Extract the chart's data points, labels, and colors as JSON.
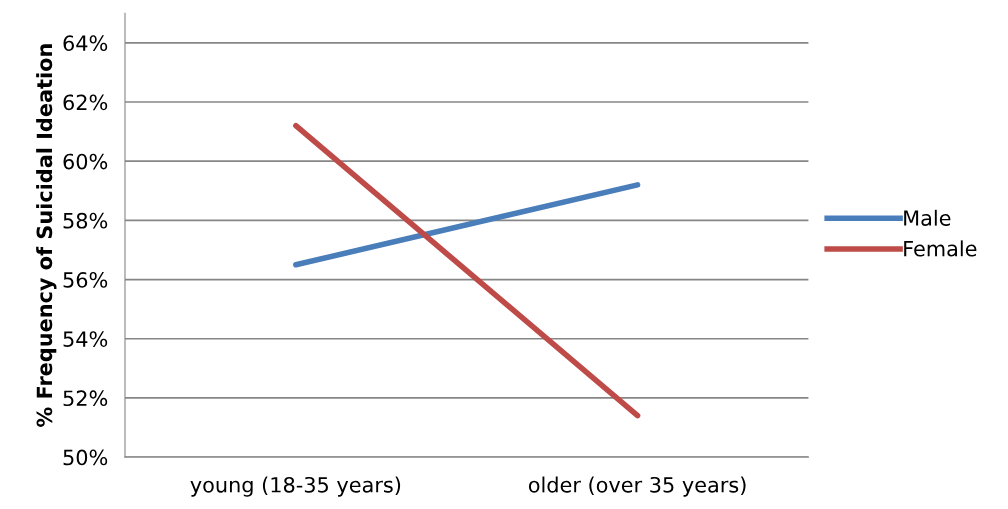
{
  "chart_data": {
    "type": "line",
    "ylabel": "% Frequency of Suicidal Ideation",
    "categories": [
      "young (18-35 years)",
      "older (over 35 years)"
    ],
    "series": [
      {
        "name": "Male",
        "color": "#4a7ebb",
        "values": [
          56.5,
          59.2
        ]
      },
      {
        "name": "Female",
        "color": "#be4b48",
        "values": [
          61.2,
          51.4
        ]
      }
    ],
    "ylim": [
      50,
      65
    ],
    "yticks": [
      {
        "value": 50,
        "label": "50%"
      },
      {
        "value": 52,
        "label": "52%"
      },
      {
        "value": 54,
        "label": "54%"
      },
      {
        "value": 56,
        "label": "56%"
      },
      {
        "value": 58,
        "label": "58%"
      },
      {
        "value": 60,
        "label": "60%"
      },
      {
        "value": 62,
        "label": "62%"
      },
      {
        "value": 64,
        "label": "64%"
      }
    ],
    "grid": "y",
    "legend": "right",
    "marker": "none",
    "line_style": "solid"
  }
}
